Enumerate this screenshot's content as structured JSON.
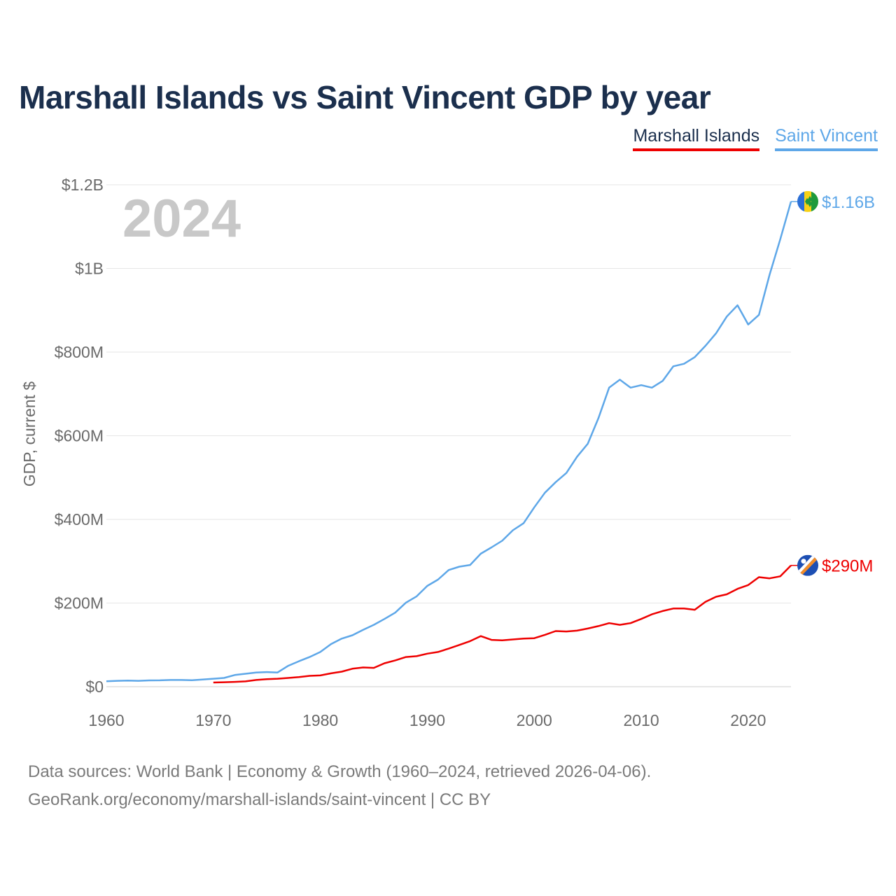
{
  "title": "Marshall Islands vs Saint Vincent GDP by year",
  "legend": [
    {
      "name": "Marshall Islands",
      "color": "#ee0000"
    },
    {
      "name": "Saint Vincent",
      "color": "#5ea7e8"
    }
  ],
  "overlay_year": "2024",
  "source": {
    "line1": "Data sources: World Bank | Economy & Growth (1960–2024, retrieved 2026-04-06).",
    "line2": "GeoRank.org/economy/marshall-islands/saint-vincent | CC BY"
  },
  "chart_data": {
    "type": "line",
    "title": "Marshall Islands vs Saint Vincent GDP by year",
    "xlabel": "",
    "ylabel": "GDP, current $",
    "xlim": [
      1960,
      2024
    ],
    "ylim": [
      0,
      1200000000
    ],
    "x_ticks": [
      1960,
      1970,
      1980,
      1990,
      2000,
      2010,
      2020
    ],
    "x_tick_labels": [
      "1960",
      "1970",
      "1980",
      "1990",
      "2000",
      "2010",
      "2020"
    ],
    "y_ticks": [
      0,
      200000000,
      400000000,
      600000000,
      800000000,
      1000000000,
      1200000000
    ],
    "y_tick_labels": [
      "$0",
      "$200M",
      "$400M",
      "$600M",
      "$800M",
      "$1B",
      "$1.2B"
    ],
    "grid": true,
    "legend_position": "top-right",
    "series": [
      {
        "name": "Saint Vincent",
        "color": "#5ea7e8",
        "end_label": "$1.16B",
        "flag_icon": "saint-vincent-flag-icon",
        "x": [
          1960,
          1961,
          1962,
          1963,
          1964,
          1965,
          1966,
          1967,
          1968,
          1969,
          1970,
          1971,
          1972,
          1973,
          1974,
          1975,
          1976,
          1977,
          1978,
          1979,
          1980,
          1981,
          1982,
          1983,
          1984,
          1985,
          1986,
          1987,
          1988,
          1989,
          1990,
          1991,
          1992,
          1993,
          1994,
          1995,
          1996,
          1997,
          1998,
          1999,
          2000,
          2001,
          2002,
          2003,
          2004,
          2005,
          2006,
          2007,
          2008,
          2009,
          2010,
          2011,
          2012,
          2013,
          2014,
          2015,
          2016,
          2017,
          2018,
          2019,
          2020,
          2021,
          2022,
          2023,
          2024
        ],
        "values": [
          13000000,
          14000000,
          14500000,
          14000000,
          15000000,
          15200000,
          16000000,
          16000000,
          15500000,
          17000000,
          19000000,
          21000000,
          28000000,
          31000000,
          34000000,
          35000000,
          34000000,
          50000000,
          61000000,
          71000000,
          83000000,
          102000000,
          115000000,
          123000000,
          136000000,
          148000000,
          162000000,
          177000000,
          201000000,
          216000000,
          241000000,
          256000000,
          279000000,
          287000000,
          291000000,
          318000000,
          333000000,
          349000000,
          374000000,
          391000000,
          429000000,
          464000000,
          489000000,
          511000000,
          550000000,
          581000000,
          642000000,
          715000000,
          734000000,
          715000000,
          721000000,
          715000000,
          731000000,
          766000000,
          772000000,
          788000000,
          815000000,
          845000000,
          885000000,
          912000000,
          866000000,
          889000000,
          985000000,
          1070000000,
          1160000000
        ]
      },
      {
        "name": "Marshall Islands",
        "color": "#ee0000",
        "end_label": "$290M",
        "flag_icon": "marshall-islands-flag-icon",
        "x": [
          1970,
          1971,
          1972,
          1973,
          1974,
          1975,
          1976,
          1977,
          1978,
          1979,
          1980,
          1981,
          1982,
          1983,
          1984,
          1985,
          1986,
          1987,
          1988,
          1989,
          1990,
          1991,
          1992,
          1993,
          1994,
          1995,
          1996,
          1997,
          1998,
          1999,
          2000,
          2001,
          2002,
          2003,
          2004,
          2005,
          2006,
          2007,
          2008,
          2009,
          2010,
          2011,
          2012,
          2013,
          2014,
          2015,
          2016,
          2017,
          2018,
          2019,
          2020,
          2021,
          2022,
          2023,
          2024
        ],
        "values": [
          10000000,
          10700000,
          11500000,
          12800000,
          16000000,
          18000000,
          19000000,
          21000000,
          23000000,
          26000000,
          27000000,
          32000000,
          36000000,
          43000000,
          46000000,
          45000000,
          56000000,
          63000000,
          71000000,
          73000000,
          79000000,
          83000000,
          91000000,
          100000000,
          109000000,
          121000000,
          112000000,
          111000000,
          113000000,
          115000000,
          116000000,
          124000000,
          133000000,
          132000000,
          134000000,
          139000000,
          145000000,
          152000000,
          148000000,
          152000000,
          162000000,
          173000000,
          181000000,
          187000000,
          187000000,
          184000000,
          203000000,
          215000000,
          221000000,
          234000000,
          243000000,
          262000000,
          259000000,
          264000000,
          290000000
        ]
      }
    ]
  }
}
